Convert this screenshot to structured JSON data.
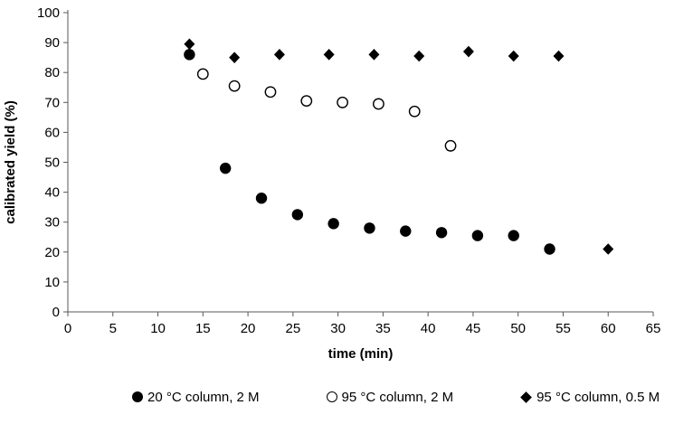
{
  "chart_data": {
    "type": "scatter",
    "title": "",
    "xlabel": "time (min)",
    "ylabel": "calibrated yield (%)",
    "xlim": [
      0,
      65
    ],
    "ylim": [
      0,
      100
    ],
    "xticks": [
      0,
      5,
      10,
      15,
      20,
      25,
      30,
      35,
      40,
      45,
      50,
      55,
      60,
      65
    ],
    "yticks": [
      0,
      10,
      20,
      30,
      40,
      50,
      60,
      70,
      80,
      90,
      100
    ],
    "grid": "off",
    "legend_position": "bottom",
    "marker_color": "#000000",
    "axis_color": "#595959",
    "series": [
      {
        "name": "20 °C column, 2 M",
        "marker": "filled-circle",
        "color": "#000000",
        "points": [
          [
            13.5,
            86
          ],
          [
            17.5,
            48
          ],
          [
            21.5,
            38
          ],
          [
            25.5,
            32.5
          ],
          [
            29.5,
            29.5
          ],
          [
            33.5,
            28
          ],
          [
            37.5,
            27
          ],
          [
            41.5,
            26.5
          ],
          [
            45.5,
            25.5
          ],
          [
            49.5,
            25.5
          ],
          [
            53.5,
            21
          ]
        ]
      },
      {
        "name": "95 °C column, 2 M",
        "marker": "open-circle",
        "color": "#000000",
        "points": [
          [
            15,
            79.5
          ],
          [
            18.5,
            75.5
          ],
          [
            22.5,
            73.5
          ],
          [
            26.5,
            70.5
          ],
          [
            30.5,
            70
          ],
          [
            34.5,
            69.5
          ],
          [
            38.5,
            67
          ],
          [
            42.5,
            55.5
          ]
        ]
      },
      {
        "name": "95 °C column, 0.5 M",
        "marker": "filled-diamond",
        "color": "#000000",
        "points": [
          [
            13.5,
            89.5
          ],
          [
            18.5,
            85
          ],
          [
            23.5,
            86
          ],
          [
            29,
            86
          ],
          [
            34,
            86
          ],
          [
            39,
            85.5
          ],
          [
            44.5,
            87
          ],
          [
            49.5,
            85.5
          ],
          [
            54.5,
            85.5
          ],
          [
            60,
            21
          ]
        ]
      }
    ]
  }
}
